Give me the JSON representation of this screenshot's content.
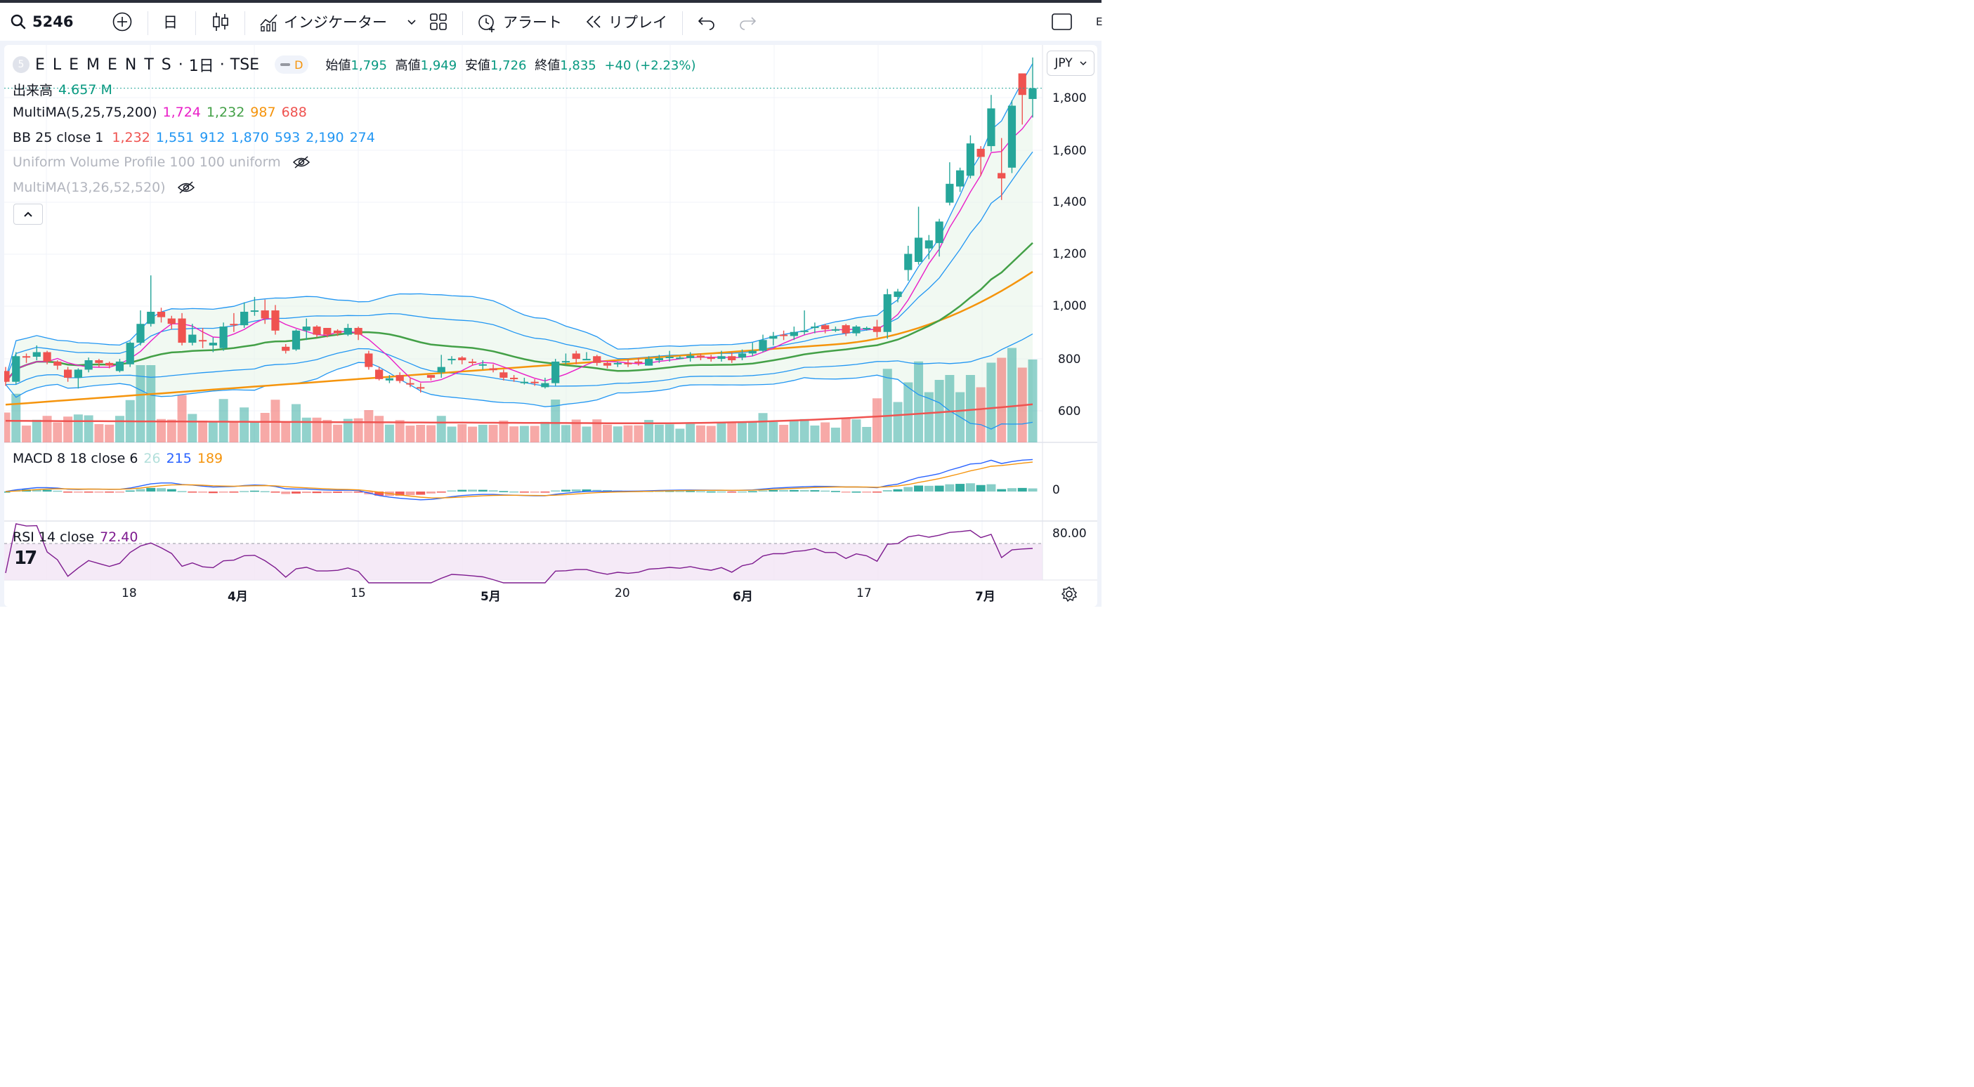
{
  "toolbar": {
    "symbol": "5246",
    "interval": "日",
    "indicators_label": "インジケーター",
    "alert_label": "アラート",
    "replay_label": "リプレイ",
    "edge_char": "E"
  },
  "header": {
    "title": "E L E M E N T S",
    "interval": "1日",
    "exchange": "TSE",
    "badge_num": "5",
    "badge": "D",
    "open_label": "始値",
    "open": "1,795",
    "high_label": "高値",
    "high": "1,949",
    "low_label": "安値",
    "low": "1,726",
    "close_label": "終値",
    "close": "1,835",
    "change": "+40 (+2.23%)"
  },
  "currency": "JPY",
  "legends": {
    "volume": {
      "label": "出来高",
      "value": "4.657 M"
    },
    "multima": {
      "label": "MultiMA(5,25,75,200)",
      "values": [
        "1,724",
        "1,232",
        "987",
        "688"
      ]
    },
    "bb": {
      "label": "BB 25 close 1",
      "values": [
        "1,232",
        "1,551",
        "912",
        "1,870",
        "593",
        "2,190",
        "274"
      ]
    },
    "uvp": {
      "label": "Uniform Volume Profile 100 100 uniform"
    },
    "multima2": {
      "label": "MultiMA(13,26,52,520)"
    },
    "macd": {
      "label": "MACD 8 18 close 6",
      "values": [
        "26",
        "215",
        "189"
      ]
    },
    "rsi": {
      "label": "RSI 14 close",
      "value": "72.40"
    }
  },
  "colors": {
    "up": "#26a69a",
    "down": "#ef5350",
    "ma5": "#e91ec8",
    "ma25": "#43a047",
    "ma75": "#f5940c",
    "ma200": "#ef5350",
    "bb": "#2196f3",
    "rsi": "#7e1b8f"
  },
  "price_axis": [
    "1,800",
    "1,600",
    "1,400",
    "1,200",
    "1,000",
    "800",
    "600"
  ],
  "macd_axis": [
    "0"
  ],
  "rsi_axis": [
    "80.00"
  ],
  "time_axis": [
    "18",
    "4月",
    "15",
    "5月",
    "20",
    "6月",
    "17",
    "7月"
  ],
  "chart_data": {
    "type": "candlestick",
    "x_labels": [
      "18",
      "4月",
      "15",
      "5月",
      "20",
      "6月",
      "17",
      "7月"
    ],
    "ylim": [
      520,
      1980
    ],
    "candles": [
      [
        785,
        745,
        800,
        730
      ],
      [
        745,
        840,
        855,
        735
      ],
      [
        840,
        838,
        850,
        815
      ],
      [
        838,
        855,
        880,
        825
      ],
      [
        855,
        820,
        860,
        810
      ],
      [
        820,
        805,
        825,
        790
      ],
      [
        790,
        760,
        800,
        745
      ],
      [
        760,
        790,
        795,
        720
      ],
      [
        790,
        825,
        835,
        780
      ],
      [
        825,
        815,
        830,
        800
      ],
      [
        815,
        805,
        820,
        795
      ],
      [
        785,
        820,
        830,
        780
      ],
      [
        810,
        890,
        895,
        800
      ],
      [
        890,
        960,
        1010,
        880
      ],
      [
        960,
        1005,
        1140,
        950
      ],
      [
        1005,
        985,
        1020,
        965
      ],
      [
        980,
        960,
        990,
        940
      ],
      [
        980,
        890,
        1000,
        880
      ],
      [
        890,
        920,
        960,
        880
      ],
      [
        900,
        895,
        945,
        870
      ],
      [
        880,
        890,
        910,
        855
      ],
      [
        870,
        950,
        965,
        860
      ],
      [
        960,
        957,
        1000,
        930
      ],
      [
        955,
        1005,
        1040,
        945
      ],
      [
        1005,
        1010,
        1060,
        990
      ],
      [
        1010,
        980,
        1050,
        960
      ],
      [
        1010,
        935,
        1030,
        920
      ],
      [
        875,
        860,
        885,
        850
      ],
      [
        865,
        935,
        940,
        860
      ],
      [
        935,
        950,
        980,
        900
      ],
      [
        950,
        920,
        955,
        910
      ],
      [
        945,
        920,
        945,
        910
      ],
      [
        935,
        925,
        940,
        915
      ],
      [
        920,
        945,
        960,
        915
      ],
      [
        945,
        920,
        950,
        900
      ],
      [
        850,
        800,
        860,
        790
      ],
      [
        790,
        755,
        800,
        750
      ],
      [
        750,
        758,
        770,
        740
      ],
      [
        770,
        748,
        780,
        740
      ],
      [
        740,
        738,
        760,
        725
      ],
      [
        725,
        720,
        740,
        705
      ],
      [
        770,
        760,
        770,
        750
      ],
      [
        780,
        800,
        845,
        760
      ],
      [
        830,
        830,
        840,
        810
      ],
      [
        835,
        825,
        840,
        810
      ],
      [
        820,
        818,
        830,
        805
      ],
      [
        805,
        810,
        825,
        790
      ],
      [
        795,
        788,
        810,
        780
      ],
      [
        780,
        760,
        790,
        750
      ],
      [
        760,
        757,
        770,
        745
      ],
      [
        740,
        745,
        760,
        735
      ],
      [
        745,
        740,
        755,
        730
      ],
      [
        725,
        740,
        760,
        720
      ],
      [
        740,
        820,
        830,
        730
      ],
      [
        820,
        822,
        850,
        810
      ],
      [
        850,
        830,
        860,
        810
      ],
      [
        830,
        830,
        855,
        825
      ],
      [
        840,
        815,
        845,
        805
      ],
      [
        815,
        805,
        820,
        795
      ],
      [
        810,
        815,
        820,
        800
      ],
      [
        815,
        810,
        830,
        800
      ],
      [
        820,
        815,
        835,
        805
      ],
      [
        805,
        830,
        840,
        805
      ],
      [
        825,
        833,
        845,
        815
      ],
      [
        833,
        838,
        860,
        820
      ],
      [
        835,
        835,
        840,
        830
      ],
      [
        833,
        842,
        855,
        820
      ],
      [
        842,
        835,
        850,
        825
      ],
      [
        835,
        830,
        845,
        820
      ],
      [
        830,
        840,
        860,
        820
      ],
      [
        840,
        825,
        855,
        815
      ],
      [
        835,
        850,
        865,
        825
      ],
      [
        850,
        860,
        890,
        840
      ],
      [
        860,
        900,
        920,
        855
      ],
      [
        905,
        915,
        930,
        880
      ],
      [
        920,
        915,
        935,
        900
      ],
      [
        915,
        930,
        950,
        900
      ],
      [
        930,
        935,
        1010,
        920
      ],
      [
        950,
        950,
        965,
        925
      ],
      [
        955,
        940,
        960,
        925
      ],
      [
        940,
        940,
        950,
        930
      ],
      [
        955,
        925,
        960,
        915
      ],
      [
        925,
        950,
        955,
        915
      ],
      [
        940,
        945,
        950,
        935
      ],
      [
        950,
        930,
        975,
        910
      ],
      [
        930,
        1070,
        1090,
        905
      ],
      [
        1060,
        1080,
        1090,
        1040
      ],
      [
        1160,
        1220,
        1250,
        1120
      ],
      [
        1190,
        1280,
        1395,
        1180
      ],
      [
        1240,
        1270,
        1290,
        1200
      ],
      [
        1260,
        1340,
        1350,
        1210
      ],
      [
        1410,
        1480,
        1560,
        1400
      ],
      [
        1470,
        1530,
        1540,
        1450
      ],
      [
        1510,
        1630,
        1660,
        1500
      ],
      [
        1610,
        1580,
        1620,
        1510
      ],
      [
        1620,
        1760,
        1810,
        1600
      ],
      [
        1520,
        1500,
        1650,
        1420
      ],
      [
        1540,
        1770,
        1790,
        1520
      ],
      [
        1890,
        1810,
        1890,
        1700
      ],
      [
        1795,
        1835,
        1949,
        1726
      ]
    ]
  }
}
